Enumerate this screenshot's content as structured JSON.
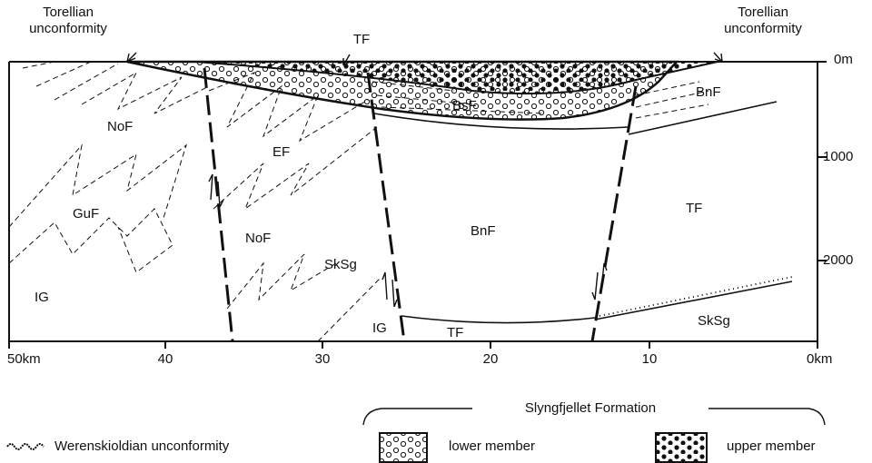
{
  "labels": {
    "torellian_left": {
      "lines": [
        "Torellian",
        "unconformity"
      ]
    },
    "torellian_right": {
      "lines": [
        "Torellian",
        "unconformity"
      ]
    }
  },
  "units": [
    "TF",
    "NoF",
    "EF",
    "GuF",
    "NoF",
    "SkSg",
    "IG",
    "IG",
    "BsF",
    "BnF",
    "BnF",
    "TF",
    "TF",
    "SkSg"
  ],
  "depth_axis": {
    "ticks": [
      "0m",
      "1000",
      "2000"
    ]
  },
  "distance_axis": {
    "ticks": [
      "50km",
      "40",
      "30",
      "20",
      "10",
      "0km"
    ]
  },
  "legend": {
    "unconformity": "Werenskioldian unconformity",
    "group_title": "Slyngfjellet Formation",
    "lower_member": "lower member",
    "upper_member": "upper member"
  }
}
